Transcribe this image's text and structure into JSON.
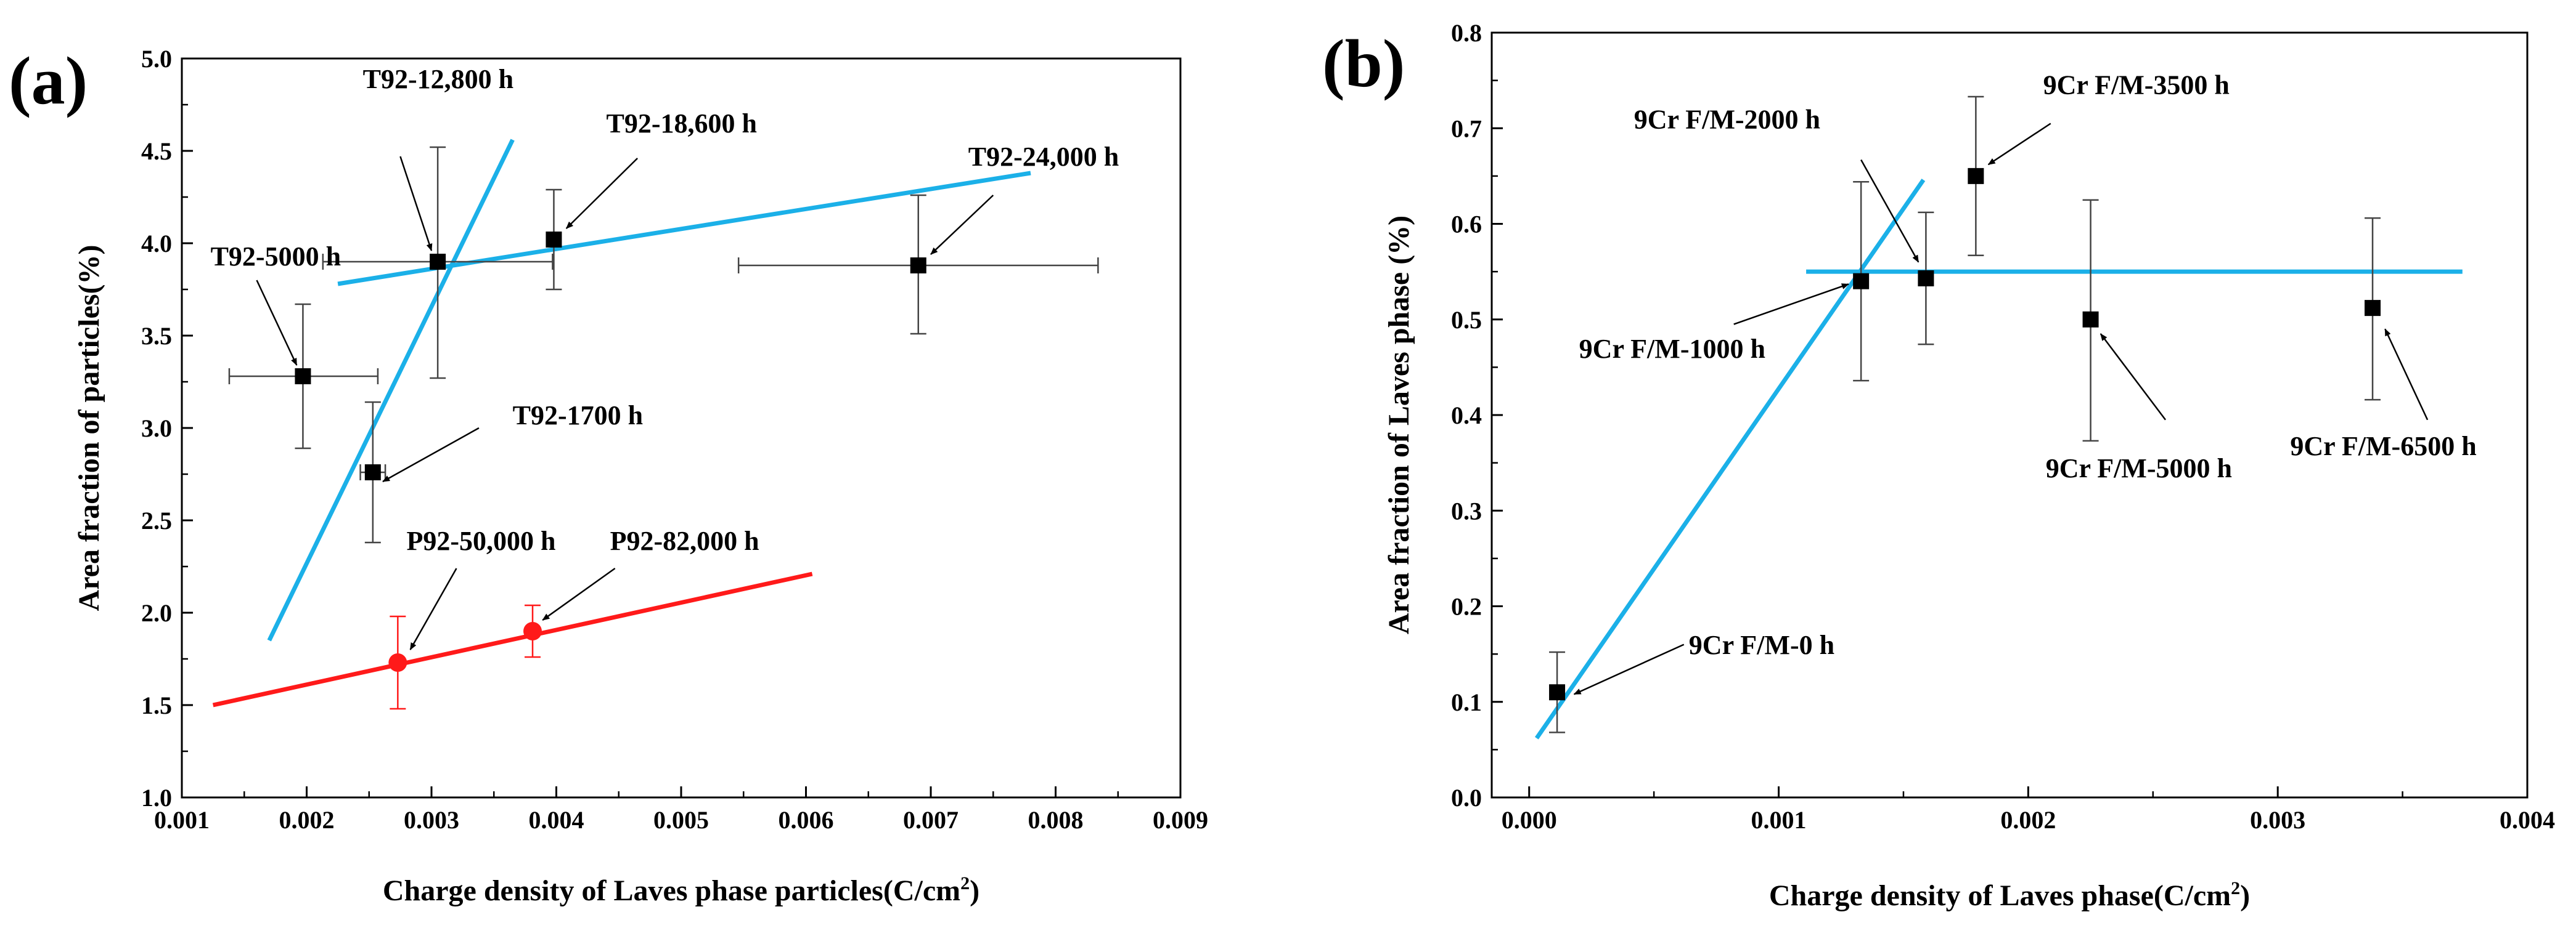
{
  "chart_data": [
    {
      "panel": "(a)",
      "type": "scatter",
      "xlabel": "Charge density of Laves phase particles(C/cm",
      "xlabel_sup": "2",
      "xlabel_close": ")",
      "ylabel": "Area fraction of particles(%)",
      "xlim": [
        0.001,
        0.009
      ],
      "ylim": [
        1.0,
        5.0
      ],
      "x_ticks": [
        "0.001",
        "0.002",
        "0.003",
        "0.004",
        "0.005",
        "0.006",
        "0.007",
        "0.008",
        "0.009"
      ],
      "y_ticks": [
        "1.0",
        "1.5",
        "2.0",
        "2.5",
        "3.0",
        "3.5",
        "4.0",
        "4.5",
        "5.0"
      ],
      "series": [
        {
          "name": "T92",
          "marker": "square",
          "color": "#000000",
          "points": [
            {
              "label": "T92-5000 h",
              "x": 0.00197,
              "y": 3.28,
              "yerr_lo": 2.89,
              "yerr_hi": 3.67,
              "xerr_lo": 0.00138,
              "xerr_hi": 0.00257
            },
            {
              "label": "T92-1700 h",
              "x": 0.00253,
              "y": 2.76,
              "yerr_lo": 2.38,
              "yerr_hi": 3.14,
              "xerr_lo": 0.00243,
              "xerr_hi": 0.00263
            },
            {
              "label": "T92-12,800 h",
              "x": 0.00305,
              "y": 3.9,
              "yerr_lo": 3.27,
              "yerr_hi": 4.52,
              "xerr_lo": 0.00213,
              "xerr_hi": 0.00397
            },
            {
              "label": "T92-18,600 h",
              "x": 0.00398,
              "y": 4.02,
              "yerr_lo": 3.75,
              "yerr_hi": 4.29,
              "xerr_lo": 0.00393,
              "xerr_hi": 0.00403
            },
            {
              "label": "T92-24,000 h",
              "x": 0.0069,
              "y": 3.88,
              "yerr_lo": 3.51,
              "yerr_hi": 4.26,
              "xerr_lo": 0.00546,
              "xerr_hi": 0.00834
            }
          ]
        },
        {
          "name": "P92",
          "marker": "circle",
          "color": "#ff1a1a",
          "points": [
            {
              "label": "P92-50,000 h",
              "x": 0.00273,
              "y": 1.73,
              "yerr_lo": 1.48,
              "yerr_hi": 1.98
            },
            {
              "label": "P92-82,000 h",
              "x": 0.00381,
              "y": 1.9,
              "yerr_lo": 1.76,
              "yerr_hi": 2.04
            }
          ]
        }
      ],
      "fit_lines": [
        {
          "color": "#1bb0e8",
          "x1": 0.0017,
          "y1": 1.85,
          "x2": 0.00365,
          "y2": 4.56
        },
        {
          "color": "#1bb0e8",
          "x1": 0.00225,
          "y1": 3.78,
          "x2": 0.0078,
          "y2": 4.38
        },
        {
          "color": "#ff1a1a",
          "x1": 0.00125,
          "y1": 1.5,
          "x2": 0.00605,
          "y2": 2.21
        }
      ],
      "annotations": [
        {
          "text": "T92-5000 h",
          "tx": 0.00123,
          "ty": 3.88,
          "ax1": 0.0016,
          "ay1": 3.8,
          "ax2": 0.00192,
          "ay2": 3.34
        },
        {
          "text": "T92-12,800 h",
          "tx": 0.00245,
          "ty": 4.84,
          "ax1": 0.00275,
          "ay1": 4.47,
          "ax2": 0.003,
          "ay2": 3.96
        },
        {
          "text": "T92-18,600 h",
          "tx": 0.0044,
          "ty": 4.6,
          "ax1": 0.00465,
          "ay1": 4.46,
          "ax2": 0.00408,
          "ay2": 4.08
        },
        {
          "text": "T92-24,000 h",
          "tx": 0.0073,
          "ty": 4.42,
          "ax1": 0.0075,
          "ay1": 4.26,
          "ax2": 0.007,
          "ay2": 3.94
        },
        {
          "text": "T92-1700 h",
          "tx": 0.00365,
          "ty": 3.02,
          "ax1": 0.00338,
          "ay1": 3.0,
          "ax2": 0.00261,
          "ay2": 2.71
        },
        {
          "text": "P92-50,000 h",
          "tx": 0.0028,
          "ty": 2.34,
          "ax1": 0.0032,
          "ay1": 2.24,
          "ax2": 0.00283,
          "ay2": 1.8
        },
        {
          "text": "P92-82,000 h",
          "tx": 0.00443,
          "ty": 2.34,
          "ax1": 0.00447,
          "ay1": 2.24,
          "ax2": 0.00389,
          "ay2": 1.96
        }
      ]
    },
    {
      "panel": "(b)",
      "type": "scatter",
      "xlabel": "Charge density of Laves phase(C/cm",
      "xlabel_sup": "2",
      "xlabel_close": ")",
      "ylabel": "Area fraction of Laves phase (%)",
      "xlim": [
        -0.00015,
        0.004
      ],
      "ylim": [
        0.0,
        0.8
      ],
      "x_ticks": [
        "0.000",
        "0.001",
        "0.002",
        "0.003",
        "0.004"
      ],
      "x_tick_values": [
        0.0,
        0.001,
        0.002,
        0.003,
        0.004
      ],
      "y_ticks": [
        "0.0",
        "0.1",
        "0.2",
        "0.3",
        "0.4",
        "0.5",
        "0.6",
        "0.7",
        "0.8"
      ],
      "series": [
        {
          "name": "9Cr F/M",
          "marker": "square",
          "color": "#000000",
          "points": [
            {
              "label": "9Cr F/M-0 h",
              "x": 0.000112,
              "y": 0.11,
              "yerr_lo": 0.068,
              "yerr_hi": 0.152
            },
            {
              "label": "9Cr F/M-1000 h",
              "x": 0.00133,
              "y": 0.54,
              "yerr_lo": 0.436,
              "yerr_hi": 0.644
            },
            {
              "label": "9Cr F/M-2000 h",
              "x": 0.00159,
              "y": 0.543,
              "yerr_lo": 0.474,
              "yerr_hi": 0.612
            },
            {
              "label": "9Cr F/M-3500 h",
              "x": 0.00179,
              "y": 0.65,
              "yerr_lo": 0.567,
              "yerr_hi": 0.733
            },
            {
              "label": "9Cr F/M-5000 h",
              "x": 0.00225,
              "y": 0.5,
              "yerr_lo": 0.373,
              "yerr_hi": 0.625
            },
            {
              "label": "9Cr F/M-6500 h",
              "x": 0.00338,
              "y": 0.512,
              "yerr_lo": 0.416,
              "yerr_hi": 0.606
            }
          ]
        }
      ],
      "fit_lines": [
        {
          "color": "#1bb0e8",
          "x1": 3e-05,
          "y1": 0.062,
          "x2": 0.00158,
          "y2": 0.646
        },
        {
          "color": "#1bb0e8",
          "x1": 0.00111,
          "y1": 0.55,
          "x2": 0.00374,
          "y2": 0.55
        }
      ],
      "annotations": [
        {
          "text": "9Cr F/M-2000 h",
          "tx": 0.00042,
          "ty": 0.7,
          "ax1": 0.00133,
          "ay1": 0.667,
          "ax2": 0.00156,
          "ay2": 0.56
        },
        {
          "text": "9Cr F/M-3500 h",
          "tx": 0.00206,
          "ty": 0.736,
          "ax1": 0.00209,
          "ay1": 0.705,
          "ax2": 0.00184,
          "ay2": 0.662
        },
        {
          "text": "9Cr F/M-1000 h",
          "tx": 0.0002,
          "ty": 0.46,
          "ax1": 0.00082,
          "ay1": 0.495,
          "ax2": 0.00128,
          "ay2": 0.537
        },
        {
          "text": "9Cr F/M-5000 h",
          "tx": 0.00207,
          "ty": 0.335,
          "ax1": 0.00255,
          "ay1": 0.395,
          "ax2": 0.00229,
          "ay2": 0.485
        },
        {
          "text": "9Cr F/M-6500 h",
          "tx": 0.00305,
          "ty": 0.358,
          "ax1": 0.0036,
          "ay1": 0.395,
          "ax2": 0.00343,
          "ay2": 0.49
        },
        {
          "text": "9Cr F/M-0 h",
          "tx": 0.00064,
          "ty": 0.15,
          "ax1": 0.00062,
          "ay1": 0.16,
          "ax2": 0.00018,
          "ay2": 0.108
        }
      ]
    }
  ]
}
